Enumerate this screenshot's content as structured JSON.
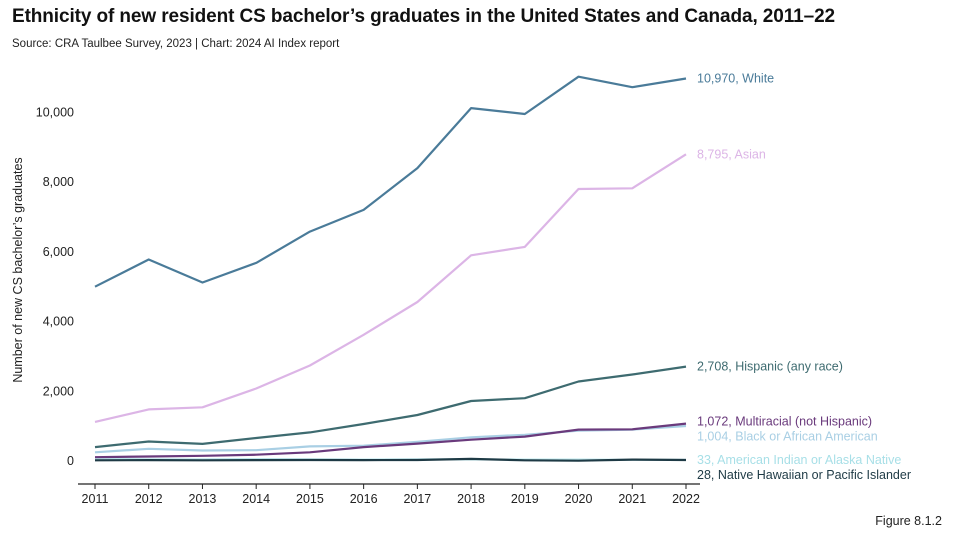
{
  "header": {
    "title": "Ethnicity of new resident CS bachelor’s graduates in the United States and Canada, 2011–22",
    "subtitle": "Source: CRA Taulbee Survey, 2023 | Chart: 2024 AI Index report"
  },
  "footer": {
    "figure_label": "Figure 8.1.2"
  },
  "chart_data": {
    "type": "line",
    "title": "Ethnicity of new resident CS bachelor’s graduates in the United States and Canada, 2011–22",
    "xlabel": "",
    "ylabel": "Number of new CS bachelor’s graduates",
    "x": [
      2011,
      2012,
      2013,
      2014,
      2015,
      2016,
      2017,
      2018,
      2019,
      2020,
      2021,
      2022
    ],
    "ylim": [
      0,
      11500
    ],
    "yticks": [
      0,
      2000,
      4000,
      6000,
      8000,
      10000
    ],
    "ytick_labels": [
      "0",
      "2,000",
      "4,000",
      "6,000",
      "8,000",
      "10,000"
    ],
    "grid": false,
    "series": [
      {
        "name": "White",
        "end_label": "10,970, White",
        "color": "#4a7b99",
        "values": [
          5000,
          5780,
          5120,
          5680,
          6580,
          7200,
          8400,
          10120,
          9950,
          11020,
          10720,
          10970
        ]
      },
      {
        "name": "Asian",
        "end_label": "8,795, Asian",
        "color": "#dcb5e6",
        "values": [
          1120,
          1480,
          1540,
          2080,
          2740,
          3620,
          4560,
          5900,
          6140,
          7800,
          7820,
          8795
        ]
      },
      {
        "name": "Hispanic (any race)",
        "end_label": "2,708, Hispanic (any race)",
        "color": "#3e6b70",
        "values": [
          400,
          560,
          490,
          660,
          820,
          1060,
          1320,
          1720,
          1800,
          2280,
          2480,
          2708
        ]
      },
      {
        "name": "Multiracial (not Hispanic)",
        "end_label": "1,072, Multiracial (not Hispanic)",
        "color": "#6a3a7c",
        "values": [
          110,
          130,
          150,
          180,
          250,
          400,
          500,
          610,
          700,
          900,
          910,
          1072
        ]
      },
      {
        "name": "Black or African American",
        "end_label": "1,004, Black or African American",
        "color": "#a9cfe4",
        "values": [
          250,
          350,
          300,
          310,
          420,
          440,
          550,
          680,
          750,
          870,
          900,
          1004
        ]
      },
      {
        "name": "American Indian or Alaska Native",
        "end_label": "33, American Indian or Alaska Native",
        "color": "#bde8ee",
        "values": [
          60,
          50,
          50,
          55,
          50,
          40,
          45,
          45,
          40,
          40,
          35,
          33
        ]
      },
      {
        "name": "Native Hawaiian or Pacific Islander",
        "end_label": "28, Native Hawaiian or Pacific Islander",
        "color": "#1e3a45",
        "values": [
          20,
          25,
          20,
          25,
          30,
          25,
          30,
          60,
          20,
          10,
          40,
          28
        ]
      }
    ]
  }
}
